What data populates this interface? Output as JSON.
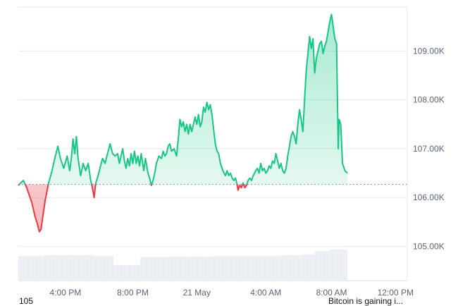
{
  "chart_data": {
    "type": "area",
    "baseline": 106.27,
    "ylim": [
      104.3,
      109.9
    ],
    "y_ticks": [
      {
        "value": 109.0,
        "label": "109.00K"
      },
      {
        "value": 108.0,
        "label": "108.00K"
      },
      {
        "value": 107.0,
        "label": "107.00K"
      },
      {
        "value": 106.0,
        "label": "106.00K"
      },
      {
        "value": 105.0,
        "label": "105.00K"
      }
    ],
    "x_ticks": [
      {
        "t": 2.8,
        "label": "4:00 PM"
      },
      {
        "t": 6.8,
        "label": "8:00 PM"
      },
      {
        "t": 10.6,
        "label": "21 May"
      },
      {
        "t": 14.7,
        "label": "4:00 AM"
      },
      {
        "t": 18.6,
        "label": "8:00 AM"
      },
      {
        "t": 22.4,
        "label": "12:00 PM"
      }
    ],
    "xlim": [
      0,
      23.1
    ],
    "price_points": [
      [
        0.0,
        106.25
      ],
      [
        0.3,
        106.35
      ],
      [
        0.5,
        106.2
      ],
      [
        0.8,
        105.9
      ],
      [
        1.0,
        105.6
      ],
      [
        1.1,
        105.5
      ],
      [
        1.25,
        105.3
      ],
      [
        1.35,
        105.35
      ],
      [
        1.45,
        105.6
      ],
      [
        1.6,
        105.95
      ],
      [
        1.8,
        106.3
      ],
      [
        2.0,
        106.55
      ],
      [
        2.2,
        106.85
      ],
      [
        2.35,
        107.05
      ],
      [
        2.5,
        106.8
      ],
      [
        2.7,
        106.6
      ],
      [
        2.9,
        106.85
      ],
      [
        3.05,
        106.55
      ],
      [
        3.15,
        106.8
      ],
      [
        3.25,
        107.2
      ],
      [
        3.35,
        106.9
      ],
      [
        3.45,
        107.25
      ],
      [
        3.55,
        106.8
      ],
      [
        3.7,
        106.45
      ],
      [
        3.85,
        106.7
      ],
      [
        4.0,
        106.55
      ],
      [
        4.15,
        106.7
      ],
      [
        4.3,
        106.35
      ],
      [
        4.4,
        106.2
      ],
      [
        4.5,
        106.0
      ],
      [
        4.6,
        106.3
      ],
      [
        4.7,
        106.4
      ],
      [
        4.85,
        106.6
      ],
      [
        5.0,
        106.8
      ],
      [
        5.15,
        106.7
      ],
      [
        5.3,
        106.9
      ],
      [
        5.45,
        107.1
      ],
      [
        5.6,
        106.9
      ],
      [
        5.75,
        106.85
      ],
      [
        5.9,
        106.9
      ],
      [
        6.0,
        106.7
      ],
      [
        6.1,
        106.85
      ],
      [
        6.2,
        107.0
      ],
      [
        6.3,
        106.75
      ],
      [
        6.4,
        106.6
      ],
      [
        6.5,
        106.8
      ],
      [
        6.6,
        106.65
      ],
      [
        6.7,
        106.9
      ],
      [
        6.8,
        106.7
      ],
      [
        6.9,
        106.95
      ],
      [
        7.0,
        106.7
      ],
      [
        7.1,
        106.85
      ],
      [
        7.2,
        106.65
      ],
      [
        7.3,
        106.9
      ],
      [
        7.45,
        106.55
      ],
      [
        7.55,
        106.8
      ],
      [
        7.7,
        106.5
      ],
      [
        7.8,
        106.4
      ],
      [
        7.9,
        106.25
      ],
      [
        8.0,
        106.35
      ],
      [
        8.1,
        106.5
      ],
      [
        8.2,
        106.7
      ],
      [
        8.35,
        106.85
      ],
      [
        8.5,
        106.8
      ],
      [
        8.6,
        106.95
      ],
      [
        8.7,
        106.85
      ],
      [
        8.8,
        106.9
      ],
      [
        8.9,
        107.05
      ],
      [
        9.0,
        107.1
      ],
      [
        9.1,
        106.95
      ],
      [
        9.25,
        107.0
      ],
      [
        9.4,
        106.85
      ],
      [
        9.5,
        107.2
      ],
      [
        9.6,
        107.6
      ],
      [
        9.7,
        107.45
      ],
      [
        9.8,
        107.55
      ],
      [
        9.9,
        107.35
      ],
      [
        10.0,
        107.5
      ],
      [
        10.1,
        107.3
      ],
      [
        10.2,
        107.5
      ],
      [
        10.3,
        107.35
      ],
      [
        10.4,
        107.5
      ],
      [
        10.5,
        107.65
      ],
      [
        10.6,
        107.5
      ],
      [
        10.7,
        107.7
      ],
      [
        10.8,
        107.45
      ],
      [
        10.9,
        107.55
      ],
      [
        11.0,
        107.85
      ],
      [
        11.1,
        107.75
      ],
      [
        11.2,
        107.95
      ],
      [
        11.3,
        107.8
      ],
      [
        11.4,
        107.9
      ],
      [
        11.5,
        107.7
      ],
      [
        11.6,
        107.4
      ],
      [
        11.7,
        107.1
      ],
      [
        11.8,
        106.95
      ],
      [
        11.9,
        106.9
      ],
      [
        12.0,
        106.7
      ],
      [
        12.15,
        106.55
      ],
      [
        12.3,
        106.45
      ],
      [
        12.4,
        106.55
      ],
      [
        12.5,
        106.45
      ],
      [
        12.6,
        106.5
      ],
      [
        12.7,
        106.4
      ],
      [
        12.8,
        106.35
      ],
      [
        12.9,
        106.4
      ],
      [
        13.0,
        106.25
      ],
      [
        13.05,
        106.15
      ],
      [
        13.15,
        106.25
      ],
      [
        13.25,
        106.2
      ],
      [
        13.35,
        106.3
      ],
      [
        13.45,
        106.2
      ],
      [
        13.55,
        106.25
      ],
      [
        13.65,
        106.35
      ],
      [
        13.75,
        106.4
      ],
      [
        13.85,
        106.35
      ],
      [
        13.95,
        106.45
      ],
      [
        14.1,
        106.55
      ],
      [
        14.2,
        106.6
      ],
      [
        14.3,
        106.5
      ],
      [
        14.4,
        106.7
      ],
      [
        14.5,
        106.55
      ],
      [
        14.6,
        106.6
      ],
      [
        14.7,
        106.5
      ],
      [
        14.8,
        106.55
      ],
      [
        14.9,
        106.65
      ],
      [
        15.0,
        106.6
      ],
      [
        15.1,
        106.75
      ],
      [
        15.2,
        106.7
      ],
      [
        15.3,
        106.9
      ],
      [
        15.4,
        106.75
      ],
      [
        15.5,
        106.6
      ],
      [
        15.6,
        106.7
      ],
      [
        15.7,
        106.55
      ],
      [
        15.8,
        106.5
      ],
      [
        15.9,
        106.6
      ],
      [
        16.0,
        106.85
      ],
      [
        16.1,
        107.05
      ],
      [
        16.2,
        107.25
      ],
      [
        16.3,
        107.35
      ],
      [
        16.4,
        107.25
      ],
      [
        16.5,
        107.1
      ],
      [
        16.6,
        107.5
      ],
      [
        16.7,
        107.8
      ],
      [
        16.8,
        107.6
      ],
      [
        16.9,
        107.35
      ],
      [
        17.0,
        108.0
      ],
      [
        17.1,
        108.6
      ],
      [
        17.2,
        108.95
      ],
      [
        17.3,
        109.3
      ],
      [
        17.4,
        109.05
      ],
      [
        17.5,
        109.25
      ],
      [
        17.6,
        108.55
      ],
      [
        17.7,
        108.85
      ],
      [
        17.8,
        109.0
      ],
      [
        17.9,
        109.15
      ],
      [
        18.0,
        109.2
      ],
      [
        18.1,
        108.95
      ],
      [
        18.2,
        109.1
      ],
      [
        18.3,
        109.2
      ],
      [
        18.4,
        109.4
      ],
      [
        18.5,
        109.6
      ],
      [
        18.6,
        109.75
      ],
      [
        18.7,
        109.5
      ],
      [
        18.8,
        109.25
      ],
      [
        18.9,
        109.15
      ],
      [
        19.0,
        107.0
      ],
      [
        19.05,
        107.6
      ],
      [
        19.15,
        107.5
      ],
      [
        19.25,
        106.7
      ],
      [
        19.4,
        106.55
      ],
      [
        19.55,
        106.5
      ]
    ],
    "volume_bars": [
      [
        0.0,
        0.6
      ],
      [
        1.5,
        0.62
      ],
      [
        3.0,
        0.62
      ],
      [
        4.5,
        0.6
      ],
      [
        5.6,
        0.6
      ],
      [
        5.65,
        0.38
      ],
      [
        7.2,
        0.38
      ],
      [
        7.25,
        0.58
      ],
      [
        9.0,
        0.59
      ],
      [
        11.5,
        0.6
      ],
      [
        13.5,
        0.6
      ],
      [
        15.5,
        0.62
      ],
      [
        16.9,
        0.64
      ],
      [
        17.6,
        0.72
      ],
      [
        18.5,
        0.76
      ],
      [
        19.55,
        0.8
      ]
    ]
  },
  "footer": {
    "left_text": "105",
    "right_text": "Bitcoin is gaining i..."
  },
  "colors": {
    "up_line": "#16c784",
    "down_line": "#ea3943",
    "up_fill": "#16c784",
    "down_fill": "#ea3943",
    "baseline": "#8d98a8",
    "grid": "#e6e9ee",
    "volume": "#e9ecf1"
  }
}
